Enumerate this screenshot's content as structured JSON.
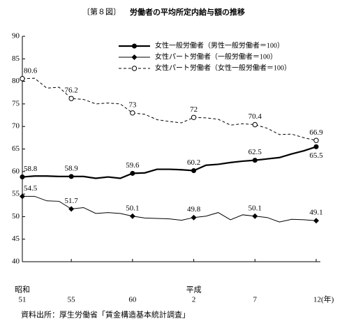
{
  "chart_data": {
    "type": "line",
    "title_prefix": "〔第８図〕",
    "title": "労働者の平均所定内給与額の推移",
    "source": "資料出所：厚生労働省「賃金構造基本統計調査」",
    "categories": [
      "51",
      null,
      null,
      null,
      "55",
      null,
      null,
      null,
      null,
      "60",
      null,
      null,
      null,
      null,
      "2",
      null,
      null,
      null,
      null,
      "7",
      null,
      null,
      null,
      null,
      "12(年)"
    ],
    "era_labels": [
      "昭和",
      "平成"
    ],
    "ylim": [
      40,
      90
    ],
    "yticks": [
      40,
      45,
      50,
      55,
      60,
      65,
      70,
      75,
      80,
      85,
      90
    ],
    "legend": "upper right",
    "marker_indices": [
      0,
      4,
      9,
      14,
      19,
      24
    ],
    "series": [
      {
        "name": "女性一般労働者（男性一般労働者＝100）",
        "color": "#000000",
        "style": "solid-thick",
        "marker": "filled-circle",
        "values": [
          58.8,
          59.0,
          59.0,
          58.9,
          58.9,
          58.9,
          58.5,
          58.8,
          58.5,
          59.6,
          59.7,
          60.5,
          60.5,
          60.4,
          60.2,
          61.4,
          61.6,
          62.0,
          62.3,
          62.5,
          62.8,
          63.1,
          63.9,
          64.6,
          65.5
        ]
      },
      {
        "name": "女性パート労働者（一般労働者＝100）",
        "color": "#000000",
        "style": "solid",
        "marker": "diamond",
        "values": [
          54.5,
          54.5,
          53.5,
          53.4,
          51.7,
          52.0,
          50.7,
          50.9,
          50.7,
          50.1,
          49.7,
          49.6,
          49.5,
          49.2,
          49.8,
          50.1,
          50.9,
          49.3,
          50.4,
          50.1,
          49.8,
          48.8,
          49.4,
          49.3,
          49.1
        ]
      },
      {
        "name": "女性パート労働者（女性一般労働者＝100）",
        "color": "#000000",
        "style": "dashed",
        "marker": "open-circle",
        "values": [
          80.6,
          80.7,
          78.5,
          78.7,
          76.2,
          76.0,
          75.0,
          75.2,
          75.0,
          73.0,
          72.7,
          71.5,
          71.1,
          70.8,
          72.0,
          71.9,
          71.6,
          70.3,
          70.6,
          70.4,
          69.6,
          68.2,
          68.3,
          67.5,
          66.9
        ]
      }
    ]
  }
}
